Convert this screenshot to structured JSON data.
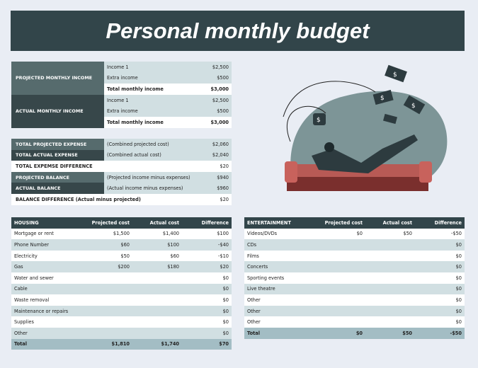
{
  "title": "Personal monthly budget",
  "income": {
    "projected": {
      "label": "PROJECTED MONTHLY INCOME",
      "rows": [
        {
          "label": "Income 1",
          "value": "$2,500"
        },
        {
          "label": "Extra income",
          "value": "$500"
        },
        {
          "label": "Total monthly income",
          "value": "$3,000"
        }
      ]
    },
    "actual": {
      "label": "ACTUAL MONTHLY INCOME",
      "rows": [
        {
          "label": "Income 1",
          "value": "$2,500"
        },
        {
          "label": "Extra income",
          "value": "$500"
        },
        {
          "label": "Total monthly income",
          "value": "$3,000"
        }
      ]
    }
  },
  "summary": [
    {
      "label": "TOTAL PROJECTED EXPENSE",
      "note": "(Combined projected cost)",
      "value": "$2,060"
    },
    {
      "label": "TOTAL ACTUAL EXPENSE",
      "note": "(Combined actual cost)",
      "value": "$2,040"
    },
    {
      "label": "TOTAL EXPEMSE DIFFERENCE",
      "note": "",
      "value": "$20"
    },
    {
      "label": "PROJECTED BALANCE",
      "note": "(Projected income minus expenses)",
      "value": "$940"
    },
    {
      "label": "ACTUAL BALANCE",
      "note": "(Actual income minus expenses)",
      "value": "$960"
    },
    {
      "label": "BALANCE DIFFERENCE (Actual minus projected)",
      "note": "",
      "value": "$20"
    }
  ],
  "housing": {
    "headers": [
      "HOUSING",
      "Projected cost",
      "Actual cost",
      "Difference"
    ],
    "rows": [
      [
        "Mortgage or rent",
        "$1,500",
        "$1,400",
        "$100"
      ],
      [
        "Phone Number",
        "$60",
        "$100",
        "-$40"
      ],
      [
        "Electricity",
        "$50",
        "$60",
        "-$10"
      ],
      [
        "Gas",
        "$200",
        "$180",
        "$20"
      ],
      [
        "Water and sewer",
        "",
        "",
        "$0"
      ],
      [
        "Cable",
        "",
        "",
        "$0"
      ],
      [
        "Waste removal",
        "",
        "",
        "$0"
      ],
      [
        "Maintenance or repairs",
        "",
        "",
        "$0"
      ],
      [
        "Supplies",
        "",
        "",
        "$0"
      ],
      [
        "Other",
        "",
        "",
        "$0"
      ]
    ],
    "total": [
      "Total",
      "$1,810",
      "$1,740",
      "$70"
    ]
  },
  "entertainment": {
    "headers": [
      "ENTERTAINMENT",
      "Projected cost",
      "Actual cost",
      "Difference"
    ],
    "rows": [
      [
        "Videos/DVDs",
        "$0",
        "$50",
        "-$50"
      ],
      [
        "CDs",
        "",
        "",
        "$0"
      ],
      [
        "Films",
        "",
        "",
        "$0"
      ],
      [
        "Concerts",
        "",
        "",
        "$0"
      ],
      [
        "Sporting events",
        "",
        "",
        "$0"
      ],
      [
        "Live theatre",
        "",
        "",
        "$0"
      ],
      [
        "Other",
        "",
        "",
        "$0"
      ],
      [
        "Other",
        "",
        "",
        "$0"
      ],
      [
        "Other",
        "",
        "",
        "$0"
      ]
    ],
    "total": [
      "Total",
      "$0",
      "$50",
      "-$50"
    ]
  },
  "illustration": {
    "money_symbol": "$"
  }
}
